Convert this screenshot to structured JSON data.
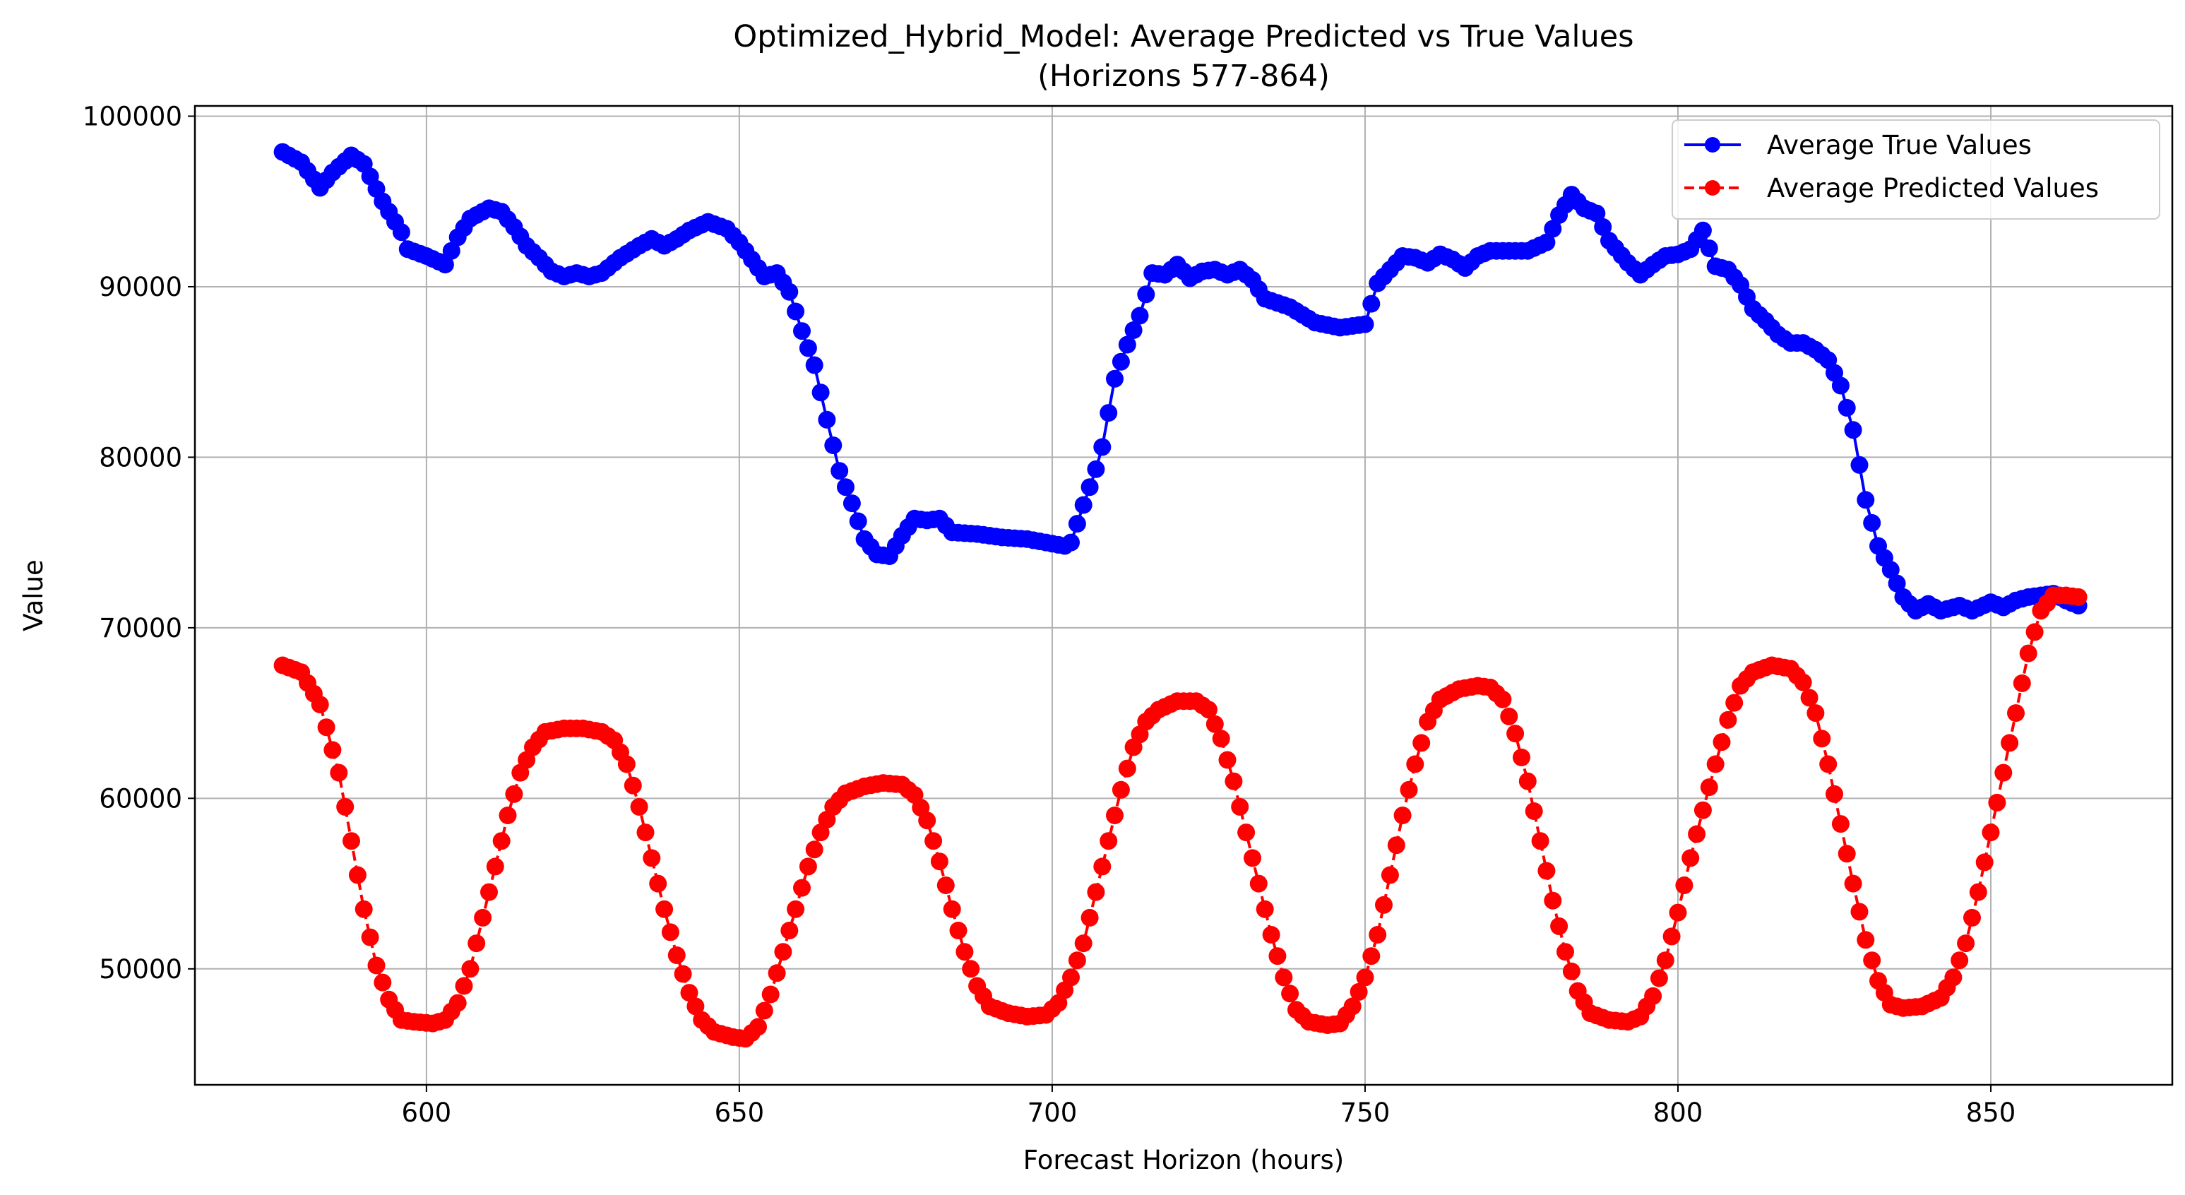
{
  "chart_data": {
    "type": "line",
    "title_line1": "Optimized_Hybrid_Model: Average Predicted vs True Values",
    "title_line2": "(Horizons 577-864)",
    "xlabel": "Forecast Horizon (hours)",
    "ylabel": "Value",
    "xlim": [
      563,
      879
    ],
    "ylim": [
      43200,
      100600
    ],
    "xticks": [
      600,
      650,
      700,
      750,
      800,
      850
    ],
    "yticks": [
      50000,
      60000,
      70000,
      80000,
      90000,
      100000
    ],
    "grid": true,
    "legend_position": "top-right",
    "x_start": 577,
    "x_end": 864,
    "series": [
      {
        "name": "Average True Values",
        "color": "#0000ff",
        "line_style": "solid",
        "marker": "circle",
        "anchors": [
          [
            577,
            97900
          ],
          [
            580,
            97300
          ],
          [
            583,
            95800
          ],
          [
            585,
            96700
          ],
          [
            588,
            97700
          ],
          [
            590,
            97200
          ],
          [
            593,
            95000
          ],
          [
            596,
            93200
          ],
          [
            597,
            92200
          ],
          [
            600,
            91800
          ],
          [
            603,
            91300
          ],
          [
            605,
            92900
          ],
          [
            607,
            94000
          ],
          [
            610,
            94600
          ],
          [
            612,
            94400
          ],
          [
            614,
            93500
          ],
          [
            616,
            92400
          ],
          [
            618,
            91700
          ],
          [
            620,
            90900
          ],
          [
            622,
            90600
          ],
          [
            624,
            90800
          ],
          [
            626,
            90600
          ],
          [
            628,
            90800
          ],
          [
            631,
            91700
          ],
          [
            634,
            92400
          ],
          [
            636,
            92800
          ],
          [
            638,
            92400
          ],
          [
            640,
            92800
          ],
          [
            642,
            93300
          ],
          [
            645,
            93800
          ],
          [
            648,
            93400
          ],
          [
            650,
            92600
          ],
          [
            652,
            91600
          ],
          [
            654,
            90600
          ],
          [
            656,
            90800
          ],
          [
            658,
            89700
          ],
          [
            660,
            87400
          ],
          [
            662,
            85400
          ],
          [
            664,
            82200
          ],
          [
            666,
            79200
          ],
          [
            668,
            77300
          ],
          [
            670,
            75200
          ],
          [
            672,
            74300
          ],
          [
            674,
            74200
          ],
          [
            676,
            75400
          ],
          [
            678,
            76400
          ],
          [
            680,
            76300
          ],
          [
            682,
            76400
          ],
          [
            684,
            75600
          ],
          [
            688,
            75500
          ],
          [
            692,
            75300
          ],
          [
            696,
            75200
          ],
          [
            699,
            75000
          ],
          [
            702,
            74800
          ],
          [
            703,
            75000
          ],
          [
            705,
            77200
          ],
          [
            707,
            79300
          ],
          [
            708,
            80600
          ],
          [
            710,
            84600
          ],
          [
            712,
            86600
          ],
          [
            714,
            88300
          ],
          [
            716,
            90800
          ],
          [
            718,
            90700
          ],
          [
            720,
            91300
          ],
          [
            722,
            90500
          ],
          [
            724,
            90900
          ],
          [
            726,
            91000
          ],
          [
            728,
            90700
          ],
          [
            730,
            91000
          ],
          [
            732,
            90400
          ],
          [
            734,
            89300
          ],
          [
            738,
            88800
          ],
          [
            742,
            87900
          ],
          [
            746,
            87600
          ],
          [
            748,
            87700
          ],
          [
            750,
            87800
          ],
          [
            752,
            90200
          ],
          [
            754,
            91000
          ],
          [
            756,
            91800
          ],
          [
            758,
            91700
          ],
          [
            760,
            91400
          ],
          [
            762,
            91900
          ],
          [
            764,
            91600
          ],
          [
            766,
            91100
          ],
          [
            768,
            91800
          ],
          [
            770,
            92100
          ],
          [
            773,
            92100
          ],
          [
            776,
            92100
          ],
          [
            779,
            92600
          ],
          [
            781,
            94200
          ],
          [
            783,
            95400
          ],
          [
            785,
            94600
          ],
          [
            787,
            94300
          ],
          [
            789,
            92700
          ],
          [
            792,
            91400
          ],
          [
            794,
            90700
          ],
          [
            796,
            91300
          ],
          [
            798,
            91800
          ],
          [
            800,
            91900
          ],
          [
            802,
            92200
          ],
          [
            804,
            93300
          ],
          [
            806,
            91200
          ],
          [
            808,
            91000
          ],
          [
            810,
            90100
          ],
          [
            812,
            88700
          ],
          [
            814,
            88000
          ],
          [
            816,
            87200
          ],
          [
            818,
            86700
          ],
          [
            820,
            86700
          ],
          [
            822,
            86300
          ],
          [
            824,
            85700
          ],
          [
            826,
            84200
          ],
          [
            828,
            81600
          ],
          [
            830,
            77500
          ],
          [
            832,
            74800
          ],
          [
            834,
            73400
          ],
          [
            836,
            71800
          ],
          [
            838,
            71000
          ],
          [
            840,
            71400
          ],
          [
            842,
            71000
          ],
          [
            845,
            71300
          ],
          [
            847,
            71000
          ],
          [
            850,
            71500
          ],
          [
            852,
            71200
          ],
          [
            854,
            71600
          ],
          [
            856,
            71800
          ],
          [
            858,
            71900
          ],
          [
            860,
            72000
          ],
          [
            862,
            71600
          ],
          [
            864,
            71300
          ]
        ]
      },
      {
        "name": "Average Predicted Values",
        "color": "#ff0000",
        "line_style": "dashed",
        "marker": "circle",
        "anchors": [
          [
            577,
            67800
          ],
          [
            580,
            67400
          ],
          [
            583,
            65500
          ],
          [
            586,
            61500
          ],
          [
            588,
            57500
          ],
          [
            590,
            53500
          ],
          [
            592,
            50200
          ],
          [
            594,
            48200
          ],
          [
            596,
            47000
          ],
          [
            598,
            46900
          ],
          [
            601,
            46800
          ],
          [
            603,
            47000
          ],
          [
            605,
            48000
          ],
          [
            607,
            50000
          ],
          [
            609,
            53000
          ],
          [
            611,
            56000
          ],
          [
            613,
            59000
          ],
          [
            615,
            61500
          ],
          [
            617,
            63000
          ],
          [
            619,
            63900
          ],
          [
            622,
            64100
          ],
          [
            625,
            64100
          ],
          [
            628,
            63900
          ],
          [
            630,
            63400
          ],
          [
            632,
            62000
          ],
          [
            634,
            59500
          ],
          [
            636,
            56500
          ],
          [
            638,
            53500
          ],
          [
            640,
            50800
          ],
          [
            642,
            48600
          ],
          [
            644,
            47000
          ],
          [
            646,
            46300
          ],
          [
            649,
            46000
          ],
          [
            651,
            45900
          ],
          [
            653,
            46600
          ],
          [
            655,
            48500
          ],
          [
            657,
            51000
          ],
          [
            659,
            53500
          ],
          [
            661,
            56000
          ],
          [
            663,
            58000
          ],
          [
            665,
            59500
          ],
          [
            667,
            60300
          ],
          [
            670,
            60700
          ],
          [
            673,
            60900
          ],
          [
            676,
            60800
          ],
          [
            678,
            60200
          ],
          [
            680,
            58700
          ],
          [
            682,
            56300
          ],
          [
            684,
            53500
          ],
          [
            686,
            51000
          ],
          [
            688,
            49000
          ],
          [
            690,
            47800
          ],
          [
            693,
            47400
          ],
          [
            696,
            47200
          ],
          [
            699,
            47300
          ],
          [
            701,
            48000
          ],
          [
            703,
            49500
          ],
          [
            705,
            51500
          ],
          [
            707,
            54500
          ],
          [
            709,
            57500
          ],
          [
            711,
            60500
          ],
          [
            713,
            63000
          ],
          [
            715,
            64500
          ],
          [
            717,
            65200
          ],
          [
            720,
            65700
          ],
          [
            723,
            65700
          ],
          [
            725,
            65200
          ],
          [
            727,
            63500
          ],
          [
            729,
            61000
          ],
          [
            731,
            58000
          ],
          [
            733,
            55000
          ],
          [
            735,
            52000
          ],
          [
            737,
            49500
          ],
          [
            739,
            47600
          ],
          [
            741,
            46900
          ],
          [
            744,
            46700
          ],
          [
            746,
            46800
          ],
          [
            748,
            47800
          ],
          [
            750,
            49500
          ],
          [
            752,
            52000
          ],
          [
            754,
            55500
          ],
          [
            756,
            59000
          ],
          [
            758,
            62000
          ],
          [
            760,
            64500
          ],
          [
            762,
            65800
          ],
          [
            765,
            66400
          ],
          [
            768,
            66600
          ],
          [
            770,
            66500
          ],
          [
            772,
            65800
          ],
          [
            774,
            63800
          ],
          [
            776,
            61000
          ],
          [
            778,
            57500
          ],
          [
            780,
            54000
          ],
          [
            782,
            51000
          ],
          [
            784,
            48700
          ],
          [
            786,
            47400
          ],
          [
            789,
            47000
          ],
          [
            792,
            46900
          ],
          [
            794,
            47200
          ],
          [
            796,
            48400
          ],
          [
            798,
            50500
          ],
          [
            800,
            53300
          ],
          [
            802,
            56500
          ],
          [
            804,
            59300
          ],
          [
            806,
            62000
          ],
          [
            808,
            64600
          ],
          [
            810,
            66600
          ],
          [
            812,
            67400
          ],
          [
            815,
            67800
          ],
          [
            818,
            67600
          ],
          [
            820,
            66800
          ],
          [
            822,
            65000
          ],
          [
            824,
            62000
          ],
          [
            826,
            58500
          ],
          [
            828,
            55000
          ],
          [
            830,
            51700
          ],
          [
            832,
            49300
          ],
          [
            834,
            47900
          ],
          [
            836,
            47700
          ],
          [
            839,
            47800
          ],
          [
            842,
            48300
          ],
          [
            844,
            49500
          ],
          [
            846,
            51500
          ],
          [
            848,
            54500
          ],
          [
            850,
            58000
          ],
          [
            852,
            61500
          ],
          [
            854,
            65000
          ],
          [
            856,
            68500
          ],
          [
            858,
            71000
          ],
          [
            860,
            71900
          ],
          [
            862,
            71900
          ],
          [
            864,
            71800
          ]
        ]
      }
    ]
  }
}
